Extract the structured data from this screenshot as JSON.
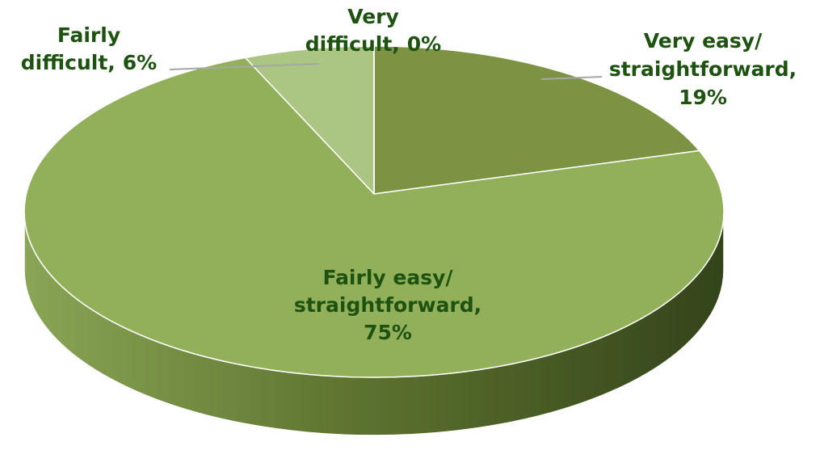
{
  "chart_data": {
    "type": "pie",
    "categories": [
      "Very easy/ straightforward,",
      "Fairly easy/ straightforward,",
      "Fairly difficult,",
      "Very difficult,"
    ],
    "values": [
      19,
      75,
      6,
      0
    ],
    "value_labels": [
      "19%",
      "75%",
      "6%",
      "0%"
    ],
    "colors": [
      "#7b9343",
      "#92b05a",
      "#abc583",
      "#c6d8a8"
    ],
    "start_angle": 0,
    "direction": "clockwise",
    "three_d": true
  }
}
